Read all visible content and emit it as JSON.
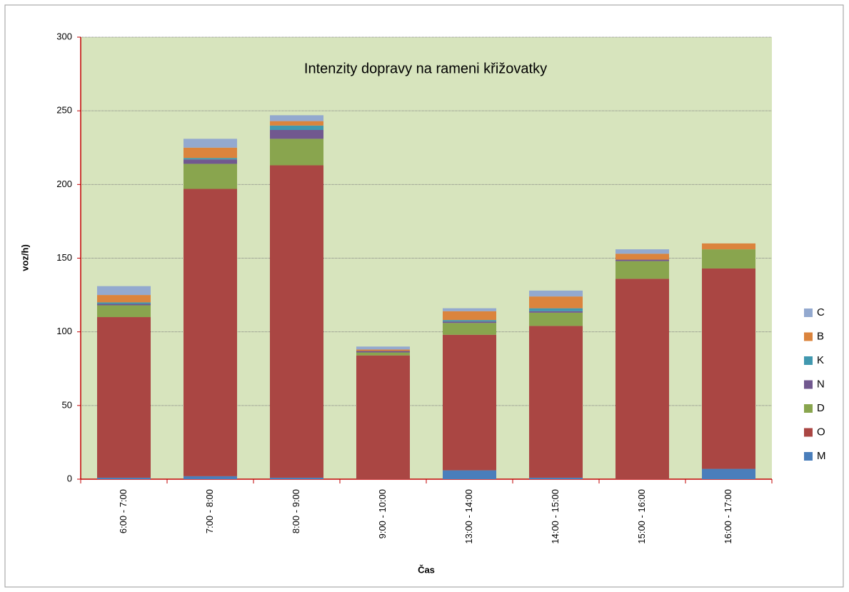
{
  "chart_data": {
    "type": "stacked_bar",
    "title": "Intenzity dopravy na rameni křižovatky",
    "x_label": "Čas",
    "y_label": "voz/h)",
    "categories": [
      "6:00 - 7:00",
      "7:00 - 8:00",
      "8:00 - 9:00",
      "9:00 - 10:00",
      "13:00 - 14:00",
      "14:00 - 15:00",
      "15:00 - 16:00",
      "16:00 - 17:00"
    ],
    "series": [
      {
        "name": "M",
        "color": "#4a7ebb",
        "values": [
          1,
          2,
          1,
          0,
          6,
          1,
          0,
          7
        ]
      },
      {
        "name": "O",
        "color": "#aa4643",
        "values": [
          109,
          195,
          212,
          84,
          92,
          103,
          136,
          136
        ]
      },
      {
        "name": "D",
        "color": "#89a54e",
        "values": [
          8,
          17,
          18,
          2,
          8,
          9,
          12,
          13
        ]
      },
      {
        "name": "N",
        "color": "#71588f",
        "values": [
          1,
          3,
          6,
          1,
          1,
          1,
          1,
          0
        ]
      },
      {
        "name": "K",
        "color": "#4198af",
        "values": [
          1,
          1,
          3,
          0,
          1,
          2,
          0,
          0
        ]
      },
      {
        "name": "B",
        "color": "#db843d",
        "values": [
          5,
          7,
          3,
          1,
          6,
          8,
          4,
          4
        ]
      },
      {
        "name": "C",
        "color": "#93a9cf",
        "values": [
          6,
          6,
          4,
          2,
          2,
          4,
          3,
          0
        ]
      }
    ],
    "ylim": [
      0,
      300
    ],
    "yticks": [
      0,
      50,
      100,
      150,
      200,
      250,
      300
    ],
    "grid": true,
    "legend": "right"
  }
}
